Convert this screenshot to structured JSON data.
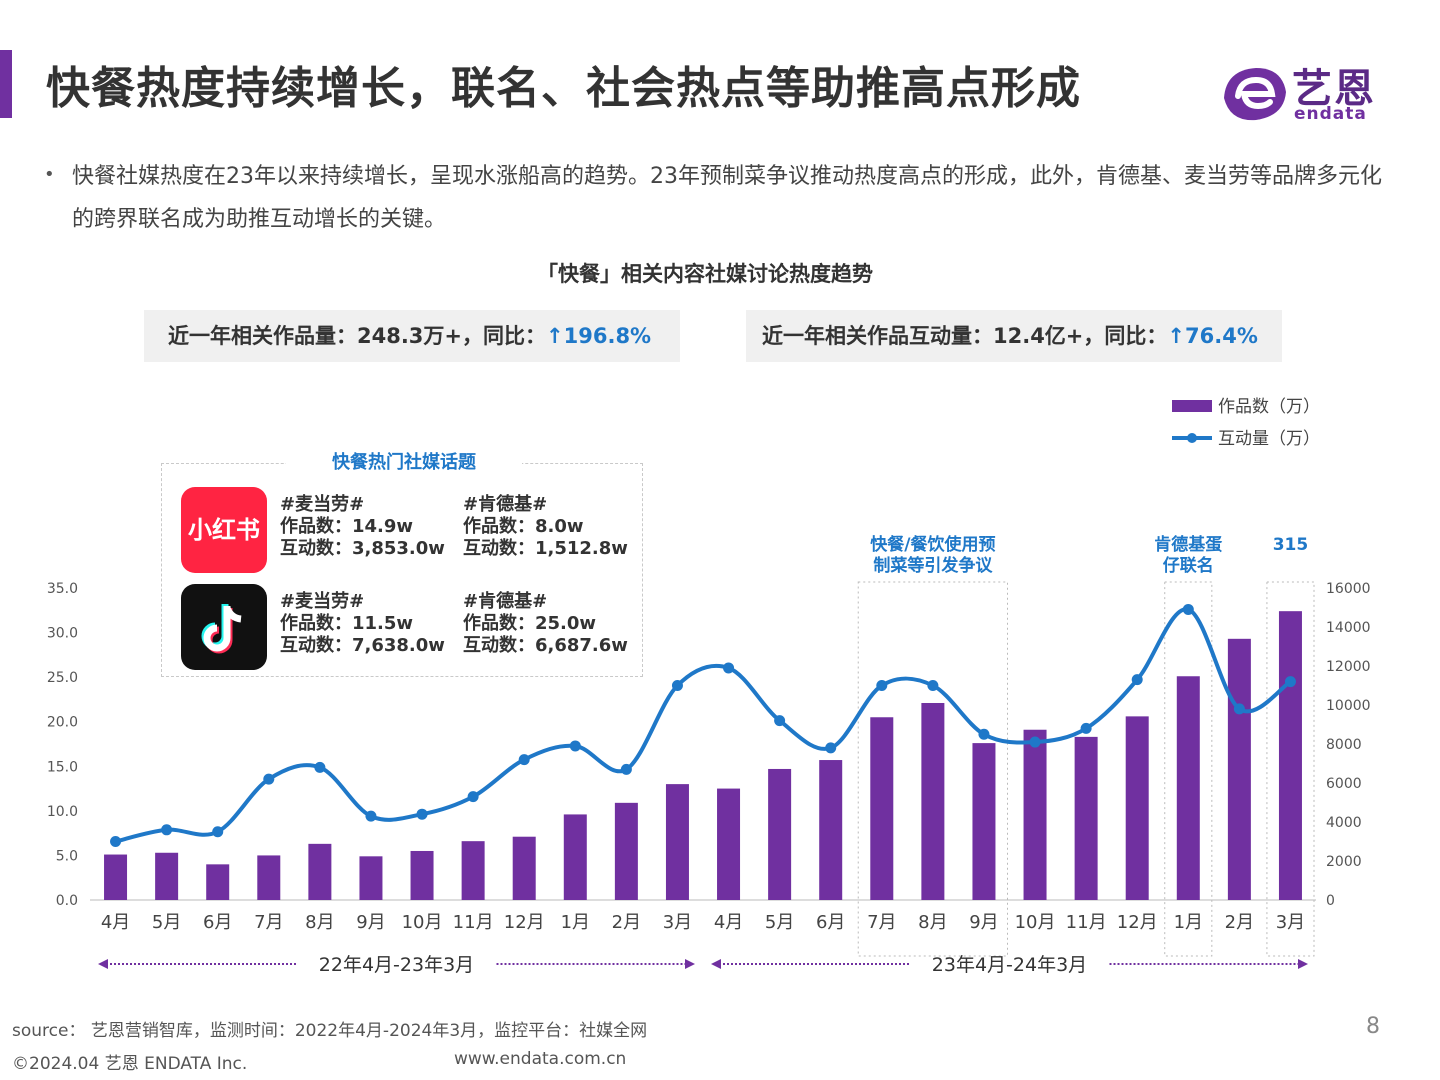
{
  "header": {
    "title": "快餐热度持续增长，联名、社会热点等助推高点形成",
    "logo_text": "艺恩",
    "logo_sub": "endata"
  },
  "bullet": {
    "text": "快餐社媒热度在23年以来持续增长，呈现水涨船高的趋势。23年预制菜争议推动热度高点的形成，此外，肯德基、麦当劳等品牌多元化的跨界联名成为助推互动增长的关键。"
  },
  "stats": {
    "works_label": "近一年相关作品量：248.3万+，同比：",
    "works_growth": "↑196.8%",
    "interactions_label": "近一年相关作品互动量：12.4亿+，同比：",
    "interactions_growth": "↑76.4%"
  },
  "topics_box": {
    "title": "快餐热门社媒话题",
    "platforms": [
      {
        "name": "小红书",
        "icon": "xiaohongshu-logo",
        "topics": [
          {
            "tag": "#麦当劳#",
            "works": "作品数：14.9w",
            "interactions": "互动数：3,853.0w"
          },
          {
            "tag": "#肯德基#",
            "works": "作品数：8.0w",
            "interactions": "互动数：1,512.8w"
          }
        ]
      },
      {
        "name": "抖音",
        "icon": "douyin-logo",
        "topics": [
          {
            "tag": "#麦当劳#",
            "works": "作品数：11.5w",
            "interactions": "互动数：7,638.0w"
          },
          {
            "tag": "#肯德基#",
            "works": "作品数：25.0w",
            "interactions": "互动数：6,687.6w"
          }
        ]
      }
    ]
  },
  "chart_data": {
    "type": "bar",
    "title": "「快餐」相关内容社媒讨论热度趋势",
    "categories": [
      "4月",
      "5月",
      "6月",
      "7月",
      "8月",
      "9月",
      "10月",
      "11月",
      "12月",
      "1月",
      "2月",
      "3月",
      "4月",
      "5月",
      "6月",
      "7月",
      "8月",
      "9月",
      "10月",
      "11月",
      "12月",
      "1月",
      "2月",
      "3月"
    ],
    "series": [
      {
        "name": "作品数（万）",
        "kind": "bar",
        "axis": "left",
        "color": "#7030a0",
        "values": [
          5.1,
          5.3,
          4.0,
          5.0,
          6.3,
          4.9,
          5.5,
          6.6,
          7.1,
          9.6,
          10.9,
          13.0,
          12.5,
          14.7,
          15.7,
          20.5,
          22.1,
          17.6,
          19.1,
          18.3,
          20.6,
          25.1,
          29.3,
          32.4
        ]
      },
      {
        "name": "互动量（万）",
        "kind": "line",
        "axis": "right",
        "color": "#1f78c8",
        "values": [
          3000,
          3600,
          3500,
          6200,
          6800,
          4300,
          4400,
          5300,
          7200,
          7900,
          6700,
          11000,
          11900,
          9200,
          7800,
          11000,
          11000,
          8500,
          8100,
          8800,
          11300,
          14900,
          9800,
          11200
        ]
      }
    ],
    "y_left": {
      "ylim": [
        0,
        35
      ],
      "ticks": [
        "0.0",
        "5.0",
        "10.0",
        "15.0",
        "20.0",
        "25.0",
        "30.0",
        "35.0"
      ]
    },
    "y_right": {
      "ylim": [
        0,
        16000
      ],
      "ticks": [
        "0",
        "2000",
        "4000",
        "6000",
        "8000",
        "10000",
        "12000",
        "14000",
        "16000"
      ]
    },
    "legend_position": "top-right",
    "grid": false,
    "periods": [
      "22年4月-23年3月",
      "23年4月-24年3月"
    ],
    "annotations": [
      {
        "text": "快餐/餐饮使用预\n制菜等引发争议",
        "from": 15,
        "to": 17
      },
      {
        "text": "肯德基蛋\n仔联名",
        "from": 21,
        "to": 21
      },
      {
        "text": "315",
        "from": 23,
        "to": 23
      }
    ]
  },
  "footer": {
    "source": "source： 艺恩营销智库，监测时间：2022年4月-2024年3月，监控平台：社媒全网",
    "copyright": "©2024.04  艺恩 ENDATA Inc.",
    "website": "www.endata.com.cn",
    "page": "8"
  },
  "colors": {
    "accent": "#7030a0",
    "line": "#1f78c8",
    "xiaohongshu": "#ff2442",
    "douyin": "#111111"
  }
}
